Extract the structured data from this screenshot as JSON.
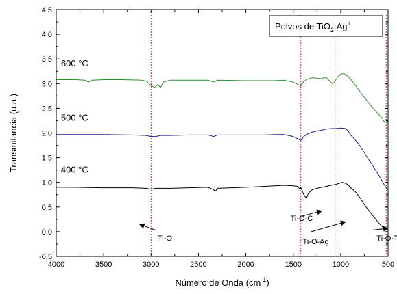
{
  "chart_data": {
    "type": "line",
    "legend_box": {
      "text": "Polvos de TiO",
      "sub": "2",
      "text2": ":Ag",
      "sup": "+"
    },
    "xlabel": {
      "text": "Número de Onda (cm",
      "sup": "-1",
      "tail": ")"
    },
    "ylabel": "Transmitancia (u.a.)",
    "xlim": [
      4000,
      500
    ],
    "ylim": [
      -0.5,
      4.5
    ],
    "x_reversed": true,
    "x_ticks": [
      4000,
      3500,
      3000,
      2500,
      2000,
      1500,
      1000,
      500
    ],
    "x_tick_labels": [
      "4000",
      "3500",
      "3000",
      "2500",
      "2000",
      "1500",
      "1000",
      "500"
    ],
    "y_ticks": [
      -0.5,
      0.0,
      0.5,
      1.0,
      1.5,
      2.0,
      2.5,
      3.0,
      3.5,
      4.0,
      4.5
    ],
    "y_tick_labels": [
      "-0.5",
      "0.0",
      "0.5",
      "1.0",
      "1.5",
      "2.0",
      "2.5",
      "3.0",
      "3.5",
      "4.0",
      "4.5"
    ],
    "reference_lines_x": [
      3000,
      1420,
      1060,
      520
    ],
    "series": [
      {
        "name": "600 °C",
        "color": "#2e8b2e",
        "x": [
          4000,
          3800,
          3700,
          3660,
          3620,
          3500,
          3300,
          3100,
          3050,
          3000,
          2960,
          2930,
          2900,
          2870,
          2800,
          2600,
          2400,
          2340,
          2300,
          2000,
          1800,
          1700,
          1600,
          1500,
          1450,
          1420,
          1390,
          1350,
          1300,
          1250,
          1200,
          1170,
          1150,
          1120,
          1090,
          1070,
          1050,
          1030,
          1010,
          990,
          960,
          930,
          900,
          850,
          800,
          750,
          700,
          650,
          600,
          560,
          540,
          520,
          510,
          500
        ],
        "y": [
          3.08,
          3.08,
          3.07,
          3.03,
          3.07,
          3.08,
          3.08,
          3.07,
          3.05,
          2.96,
          2.92,
          2.98,
          2.92,
          3.03,
          3.07,
          3.07,
          3.07,
          3.03,
          3.07,
          3.06,
          3.06,
          3.06,
          3.07,
          3.03,
          2.98,
          2.95,
          3.04,
          3.09,
          3.12,
          3.11,
          3.1,
          3.13,
          3.12,
          3.06,
          3.0,
          3.02,
          3.08,
          3.14,
          3.18,
          3.2,
          3.2,
          3.16,
          3.1,
          2.98,
          2.85,
          2.72,
          2.6,
          2.48,
          2.38,
          2.3,
          2.22,
          2.28,
          2.2,
          2.25
        ]
      },
      {
        "name": "500 °C",
        "color": "#1e1e8c",
        "x": [
          4000,
          3700,
          3500,
          3200,
          3050,
          3000,
          2950,
          2900,
          2800,
          2600,
          2400,
          2340,
          2300,
          2000,
          1800,
          1700,
          1600,
          1500,
          1450,
          1420,
          1390,
          1350,
          1300,
          1250,
          1200,
          1150,
          1100,
          1060,
          1000,
          950,
          920,
          900,
          850,
          800,
          750,
          700,
          650,
          600,
          560,
          540,
          520,
          500
        ],
        "y": [
          1.97,
          1.97,
          1.97,
          1.96,
          1.95,
          1.93,
          1.93,
          1.95,
          1.95,
          1.96,
          1.96,
          1.93,
          1.96,
          1.96,
          1.96,
          1.97,
          1.97,
          1.93,
          1.88,
          1.85,
          1.93,
          1.98,
          2.02,
          2.04,
          2.06,
          2.08,
          2.09,
          2.09,
          2.1,
          2.09,
          2.04,
          1.97,
          1.87,
          1.75,
          1.6,
          1.45,
          1.3,
          1.15,
          1.02,
          0.95,
          0.9,
          0.85
        ]
      },
      {
        "name": "400 °C",
        "color": "#000000",
        "x": [
          4000,
          3800,
          3500,
          3200,
          3050,
          3000,
          2950,
          2800,
          2600,
          2400,
          2350,
          2320,
          2300,
          2000,
          1800,
          1700,
          1600,
          1500,
          1450,
          1430,
          1420,
          1400,
          1380,
          1360,
          1340,
          1300,
          1250,
          1200,
          1150,
          1100,
          1050,
          1000,
          980,
          950,
          920,
          900,
          850,
          800,
          750,
          700,
          650,
          600,
          560,
          540,
          520,
          500
        ],
        "y": [
          0.9,
          0.9,
          0.89,
          0.89,
          0.88,
          0.86,
          0.88,
          0.88,
          0.89,
          0.9,
          0.86,
          0.82,
          0.88,
          0.9,
          0.92,
          0.93,
          0.94,
          0.93,
          0.92,
          0.85,
          0.9,
          0.8,
          0.72,
          0.68,
          0.78,
          0.85,
          0.88,
          0.9,
          0.92,
          0.94,
          0.96,
          0.99,
          1.0,
          0.98,
          0.95,
          0.9,
          0.82,
          0.7,
          0.55,
          0.42,
          0.3,
          0.18,
          0.1,
          0.06,
          0.05,
          0.04
        ]
      }
    ],
    "series_labels": [
      {
        "text": "600 °C",
        "x": 3950,
        "y": 3.35
      },
      {
        "text": "500 °C",
        "x": 3950,
        "y": 2.25
      },
      {
        "text": "400 °C",
        "x": 3950,
        "y": 1.2
      }
    ],
    "annotations": [
      {
        "text": "Ti-O",
        "tx": 2930,
        "ty": -0.18,
        "ax0": 2950,
        "ay0": 0.03,
        "ax1": 3120,
        "ay1": 0.15
      },
      {
        "text": "Ti-O-C",
        "tx": 1530,
        "ty": 0.22,
        "ax0": 1400,
        "ay0": 0.32,
        "ax1": 1200,
        "ay1": 0.42
      },
      {
        "text": "Ti-O-Ag",
        "tx": 1400,
        "ty": -0.25,
        "ax0": 1310,
        "ay0": 0.0,
        "ax1": 950,
        "ay1": 0.2
      },
      {
        "text": "Ti-O-Ti",
        "tx": 620,
        "ty": -0.18,
        "ax0": 680,
        "ay0": 0.03,
        "ax1": 500,
        "ay1": 0.07
      }
    ]
  }
}
